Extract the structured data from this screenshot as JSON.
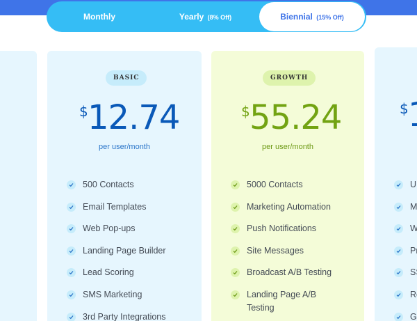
{
  "billing_toggle": {
    "monthly": {
      "label": "Monthly"
    },
    "yearly": {
      "label": "Yearly",
      "discount": "(8% Off)"
    },
    "biennial": {
      "label": "Biennial",
      "discount": "(15% Off)",
      "selected": true
    }
  },
  "plans": [
    {
      "badge": "BASIC",
      "currency": "$",
      "price": "12.74",
      "period": "per user/month",
      "features": [
        "500 Contacts",
        "Email Templates",
        "Web Pop-ups",
        "Landing Page Builder",
        "Lead Scoring",
        "SMS Marketing",
        "3rd Party Integrations"
      ]
    },
    {
      "badge": "GROWTH",
      "currency": "$",
      "price": "55.24",
      "period": "per user/month",
      "features": [
        "5000 Contacts",
        "Marketing Automation",
        "Push Notifications",
        "Site Messages",
        "Broadcast A/B Testing",
        "Landing Page A/B Testing"
      ]
    }
  ],
  "partial_plan": {
    "currency": "$",
    "price_visible": "1",
    "feature_initials": [
      "U",
      "M",
      "W",
      "Pr",
      "SS",
      "Re",
      "G"
    ]
  },
  "colors": {
    "top_band": "#3f74e8",
    "toggle_bg": "#35bdf5",
    "basic_card": "#e6f6fe",
    "growth_card": "#f4fcd8",
    "basic_price": "#0a59b8",
    "growth_price": "#72a312"
  },
  "icons": {
    "feature_check": "check-circle-icon"
  }
}
